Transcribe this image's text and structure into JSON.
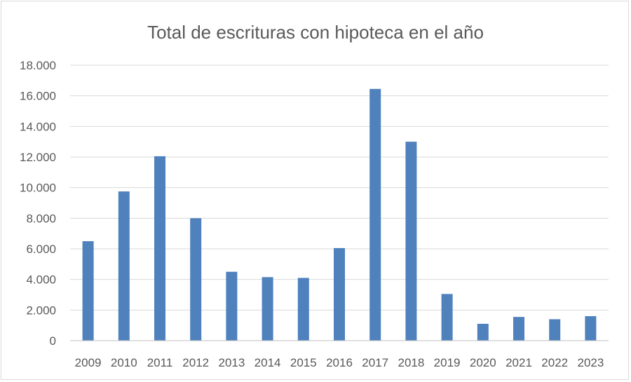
{
  "chart_data": {
    "type": "bar",
    "title": "Total de escrituras con hipoteca en el año",
    "xlabel": "",
    "ylabel": "",
    "categories": [
      "2009",
      "2010",
      "2011",
      "2012",
      "2013",
      "2014",
      "2015",
      "2016",
      "2017",
      "2018",
      "2019",
      "2020",
      "2021",
      "2022",
      "2023"
    ],
    "values": [
      6500,
      9750,
      12050,
      8000,
      4500,
      4150,
      4100,
      6050,
      16450,
      13000,
      3050,
      1100,
      1550,
      1400,
      1600
    ],
    "ylim": [
      0,
      18000
    ],
    "yticks": [
      0,
      2000,
      4000,
      6000,
      8000,
      10000,
      12000,
      14000,
      16000,
      18000
    ],
    "ytick_labels": [
      "0",
      "2.000",
      "4.000",
      "6.000",
      "8.000",
      "10.000",
      "12.000",
      "14.000",
      "16.000",
      "18.000"
    ],
    "grid": true,
    "legend": "none",
    "colors": {
      "bar": "#4f81bd",
      "grid": "#d9d9d9",
      "axis": "#bfbfbf",
      "text": "#595959"
    }
  }
}
